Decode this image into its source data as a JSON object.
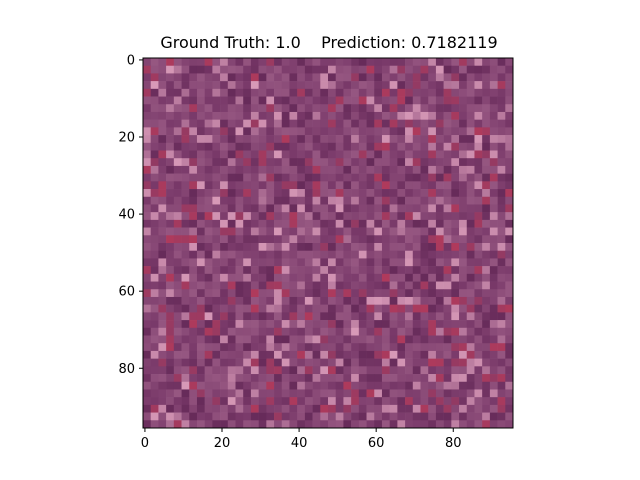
{
  "chart_data": {
    "type": "heatmap",
    "title": "Ground Truth: 1.0    Prediction: 0.7182119",
    "xlabel": "",
    "ylabel": "",
    "image_width": 96,
    "image_height": 96,
    "xlim": [
      -0.5,
      95.5
    ],
    "ylim": [
      95.5,
      -0.5
    ],
    "x_ticks": [
      0,
      20,
      40,
      60,
      80
    ],
    "y_ticks": [
      0,
      20,
      40,
      60,
      80
    ],
    "grid": false,
    "colors": {
      "base": "#7a3a6a",
      "dark": "#5e2452",
      "light": "#b56f9a",
      "highlight": "#d89ab8",
      "red": "#b53a5a"
    }
  }
}
